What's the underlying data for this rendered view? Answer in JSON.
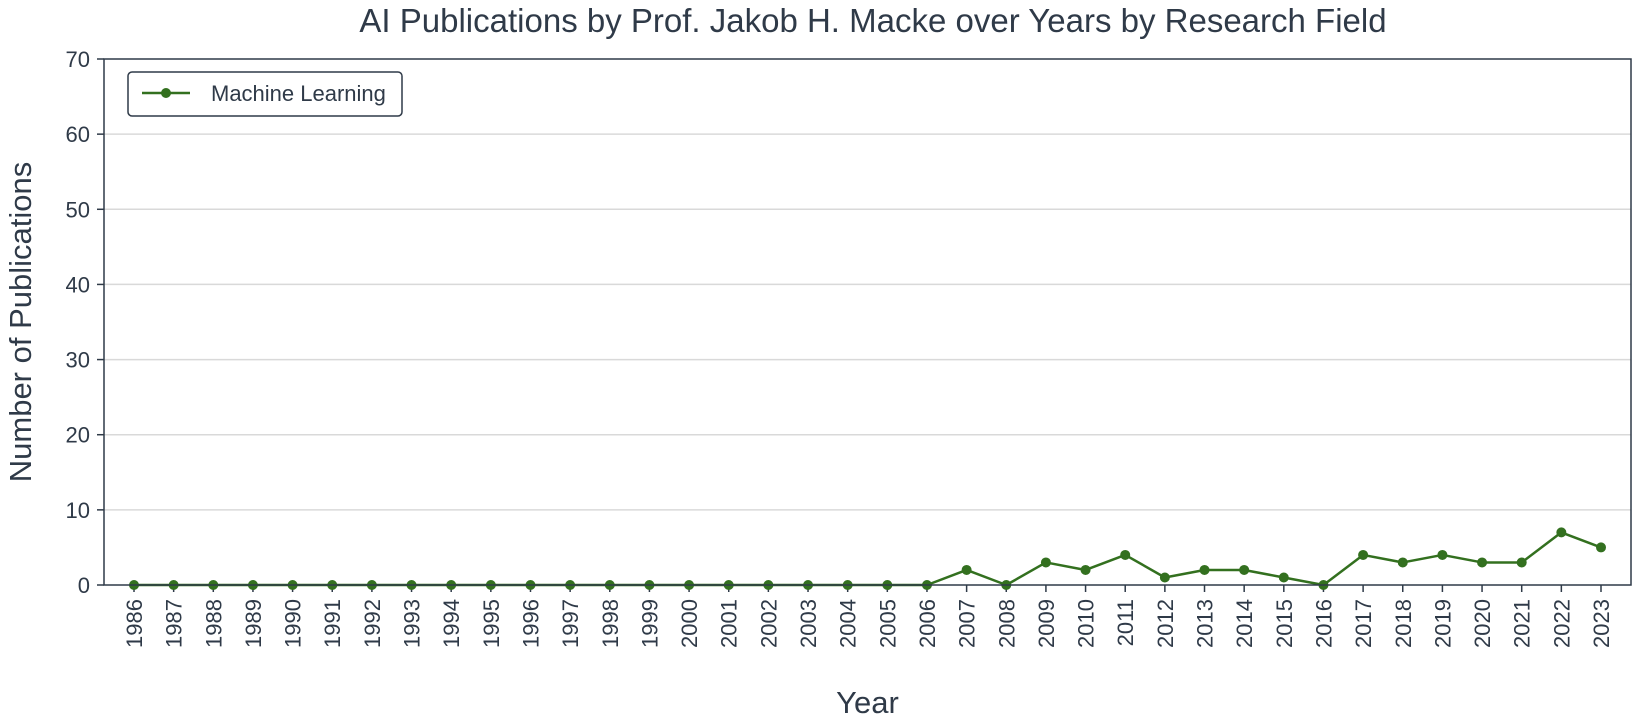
{
  "chart_data": {
    "type": "line",
    "title": "AI Publications by Prof. Jakob H. Macke over Years by Research Field",
    "xlabel": "Year",
    "ylabel": "Number of Publications",
    "ylim": [
      0,
      70
    ],
    "yticks": [
      0,
      10,
      20,
      30,
      40,
      50,
      60,
      70
    ],
    "grid": "horizontal",
    "legend_position": "top-left",
    "x": [
      "1986",
      "1987",
      "1988",
      "1989",
      "1990",
      "1991",
      "1992",
      "1993",
      "1994",
      "1995",
      "1996",
      "1997",
      "1998",
      "1999",
      "2000",
      "2001",
      "2002",
      "2003",
      "2004",
      "2005",
      "2006",
      "2007",
      "2008",
      "2009",
      "2010",
      "2011",
      "2012",
      "2013",
      "2014",
      "2015",
      "2016",
      "2017",
      "2018",
      "2019",
      "2020",
      "2021",
      "2022",
      "2023"
    ],
    "series": [
      {
        "name": "Machine Learning",
        "color": "#33701f",
        "values": [
          0,
          0,
          0,
          0,
          0,
          0,
          0,
          0,
          0,
          0,
          0,
          0,
          0,
          0,
          0,
          0,
          0,
          0,
          0,
          0,
          0,
          2,
          0,
          3,
          2,
          4,
          1,
          2,
          2,
          1,
          0,
          4,
          3,
          4,
          3,
          3,
          7,
          5
        ]
      }
    ]
  }
}
